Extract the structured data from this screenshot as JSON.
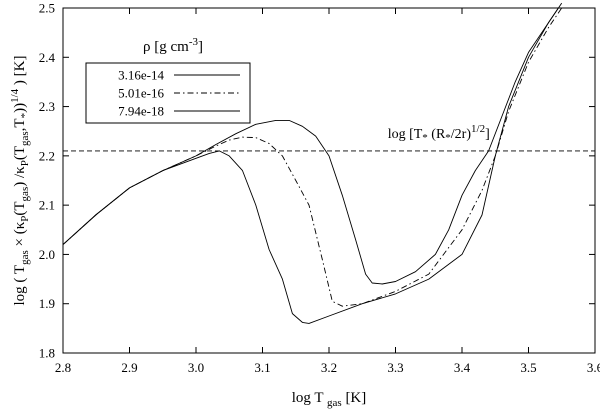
{
  "chart_data": {
    "type": "line",
    "xlabel": "log T",
    "xlabel_sub": "gas",
    "xlabel_unit": "[K]",
    "ylabel": "log ( T",
    "ylabel_sub1": "gas",
    "ylabel_mid1": " × (κ",
    "ylabel_sub2": "P",
    "ylabel_mid2": "(T",
    "ylabel_sub3": "gas",
    "ylabel_mid3": ") /κ",
    "ylabel_sub4": "P",
    "ylabel_mid4": "(T",
    "ylabel_sub5": "gas",
    "ylabel_mid5": ",T",
    "ylabel_sub6": "*",
    "ylabel_mid6": "))",
    "ylabel_sup": "1/4",
    "ylabel_end": " ) [K]",
    "xlim": [
      2.8,
      3.6
    ],
    "ylim": [
      1.8,
      2.5
    ],
    "x_ticks": [
      "2.8",
      "2.9",
      "3.0",
      "3.1",
      "3.2",
      "3.3",
      "3.4",
      "3.5",
      "3.6"
    ],
    "y_ticks": [
      "1.8",
      "1.9",
      "2.0",
      "2.1",
      "2.2",
      "2.3",
      "2.4",
      "2.5"
    ],
    "legend": {
      "title": "ρ [g cm",
      "title_sup": "-3",
      "title_end": "]",
      "placement": "top-left"
    },
    "series": [
      {
        "name": "3.16e-14",
        "style": "solid",
        "points": [
          [
            2.8,
            2.02
          ],
          [
            2.85,
            2.081
          ],
          [
            2.9,
            2.135
          ],
          [
            2.95,
            2.17
          ],
          [
            3.0,
            2.2
          ],
          [
            3.03,
            2.223
          ],
          [
            3.06,
            2.245
          ],
          [
            3.09,
            2.264
          ],
          [
            3.12,
            2.272
          ],
          [
            3.14,
            2.272
          ],
          [
            3.16,
            2.26
          ],
          [
            3.18,
            2.24
          ],
          [
            3.2,
            2.2
          ],
          [
            3.22,
            2.12
          ],
          [
            3.24,
            2.03
          ],
          [
            3.255,
            1.96
          ],
          [
            3.265,
            1.942
          ],
          [
            3.28,
            1.94
          ],
          [
            3.3,
            1.945
          ],
          [
            3.33,
            1.965
          ],
          [
            3.36,
            2.0
          ],
          [
            3.38,
            2.05
          ],
          [
            3.4,
            2.12
          ],
          [
            3.42,
            2.17
          ],
          [
            3.44,
            2.21
          ],
          [
            3.46,
            2.28
          ],
          [
            3.48,
            2.35
          ],
          [
            3.5,
            2.41
          ],
          [
            3.52,
            2.45
          ],
          [
            3.55,
            2.51
          ]
        ]
      },
      {
        "name": "5.01e-16",
        "style": "dashdot",
        "points": [
          [
            2.8,
            2.02
          ],
          [
            2.85,
            2.081
          ],
          [
            2.9,
            2.135
          ],
          [
            2.95,
            2.17
          ],
          [
            3.0,
            2.2
          ],
          [
            3.03,
            2.22
          ],
          [
            3.05,
            2.232
          ],
          [
            3.07,
            2.238
          ],
          [
            3.09,
            2.237
          ],
          [
            3.11,
            2.225
          ],
          [
            3.13,
            2.2
          ],
          [
            3.15,
            2.15
          ],
          [
            3.17,
            2.1
          ],
          [
            3.19,
            1.99
          ],
          [
            3.205,
            1.905
          ],
          [
            3.22,
            1.895
          ],
          [
            3.25,
            1.9
          ],
          [
            3.3,
            1.925
          ],
          [
            3.35,
            1.96
          ],
          [
            3.4,
            2.05
          ],
          [
            3.43,
            2.13
          ],
          [
            3.45,
            2.2
          ],
          [
            3.47,
            2.29
          ],
          [
            3.5,
            2.39
          ],
          [
            3.53,
            2.46
          ],
          [
            3.55,
            2.5
          ]
        ]
      },
      {
        "name": "7.94e-18",
        "style": "solid",
        "points": [
          [
            2.8,
            2.02
          ],
          [
            2.85,
            2.081
          ],
          [
            2.9,
            2.135
          ],
          [
            2.95,
            2.17
          ],
          [
            3.0,
            2.195
          ],
          [
            3.02,
            2.205
          ],
          [
            3.035,
            2.21
          ],
          [
            3.05,
            2.2
          ],
          [
            3.07,
            2.17
          ],
          [
            3.09,
            2.1
          ],
          [
            3.11,
            2.01
          ],
          [
            3.13,
            1.95
          ],
          [
            3.145,
            1.88
          ],
          [
            3.16,
            1.862
          ],
          [
            3.17,
            1.86
          ],
          [
            3.2,
            1.875
          ],
          [
            3.25,
            1.9
          ],
          [
            3.3,
            1.92
          ],
          [
            3.35,
            1.95
          ],
          [
            3.4,
            2.0
          ],
          [
            3.43,
            2.08
          ],
          [
            3.45,
            2.2
          ],
          [
            3.47,
            2.3
          ],
          [
            3.5,
            2.4
          ],
          [
            3.53,
            2.47
          ],
          [
            3.545,
            2.5
          ]
        ]
      }
    ],
    "annotation": {
      "text_main": "log [T",
      "text_sub1": "*",
      "text_mid": " (R",
      "text_sub2": "*",
      "text_end": "/2r)",
      "text_sup": "1/2",
      "text_close": "]",
      "y": 2.21,
      "style": "dashed"
    },
    "grid": false
  }
}
